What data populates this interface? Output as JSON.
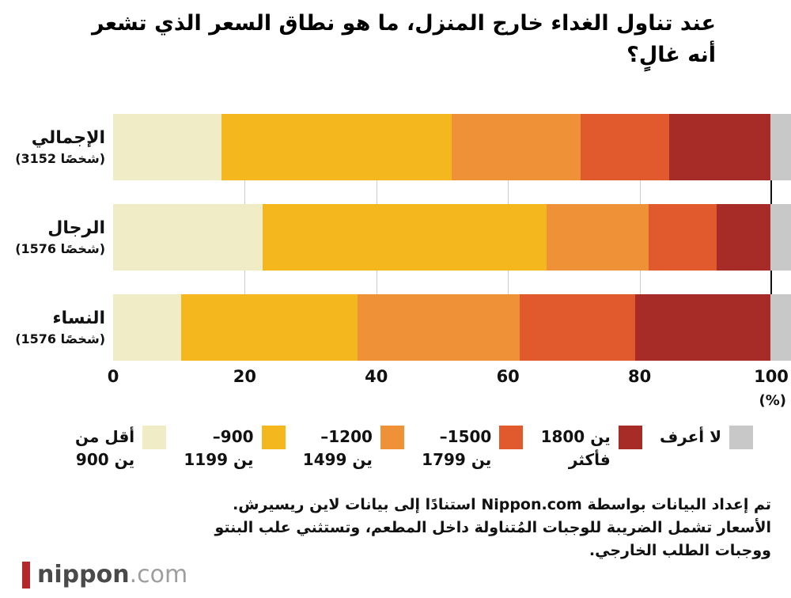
{
  "title": {
    "lines": [
      "عند تناول الغداء خارج المنزل، ما هو نطاق السعر الذي تشعر",
      "أنه غالٍ؟"
    ]
  },
  "chart_data": {
    "type": "bar",
    "variant": "horizontal-stacked",
    "stacked": true,
    "unit": "%",
    "categories": [
      "الإجمالي",
      "الرجال",
      "النساء"
    ],
    "category_counts": [
      "(3152 شخصًا)",
      "(1576 شخصًا)",
      "(1576 شخصًا)"
    ],
    "series": [
      {
        "name": "أقل من 900 ين",
        "color": "#f0ecc6",
        "values": [
          16,
          22,
          10
        ]
      },
      {
        "name": "900–1199 ين",
        "color": "#f4b71e",
        "values": [
          34,
          42,
          26
        ]
      },
      {
        "name": "1200–1499 ين",
        "color": "#ef9237",
        "values": [
          19,
          15,
          24
        ]
      },
      {
        "name": "1500–1799 ين",
        "color": "#e05a2d",
        "values": [
          13,
          10,
          17
        ]
      },
      {
        "name": "1800 ين فأكثر",
        "color": "#a72c28",
        "values": [
          15,
          8,
          20
        ]
      },
      {
        "name": "لا أعرف",
        "color": "#c8c8c8",
        "values": [
          3,
          3,
          3
        ]
      }
    ],
    "x_ticks": [
      0,
      20,
      40,
      60,
      80,
      100
    ],
    "xlim": [
      0,
      100
    ],
    "x_unit": "(%)",
    "grid": true,
    "legend_position": "bottom"
  },
  "legend": {
    "items": [
      {
        "lines": [
          "أقل من",
          "900 ين"
        ],
        "color": "#f0ecc6"
      },
      {
        "lines": [
          "–900",
          "1199 ين"
        ],
        "color": "#f4b71e"
      },
      {
        "lines": [
          "–1200",
          "1499 ين"
        ],
        "color": "#ef9237"
      },
      {
        "lines": [
          "–1500",
          "1799 ين"
        ],
        "color": "#e05a2d"
      },
      {
        "lines": [
          "1800 ين",
          "فأكثر"
        ],
        "color": "#a72c28"
      },
      {
        "lines": [
          "لا أعرف"
        ],
        "color": "#c8c8c8"
      }
    ]
  },
  "footer": {
    "lines": [
      "تم إعداد البيانات بواسطة Nippon.com استنادًا إلى بيانات لاين ريسيرش.",
      "الأسعار تشمل الضريبة للوجبات المُتناولة داخل المطعم، وتستثني علب البنتو",
      "ووجبات الطلب الخارجي."
    ]
  },
  "logo": {
    "name": "nippon",
    "tld": ".com",
    "bar_color": "#b5272d"
  },
  "colors": {
    "gridline": "#cccccc",
    "axis_line": "#111111"
  }
}
